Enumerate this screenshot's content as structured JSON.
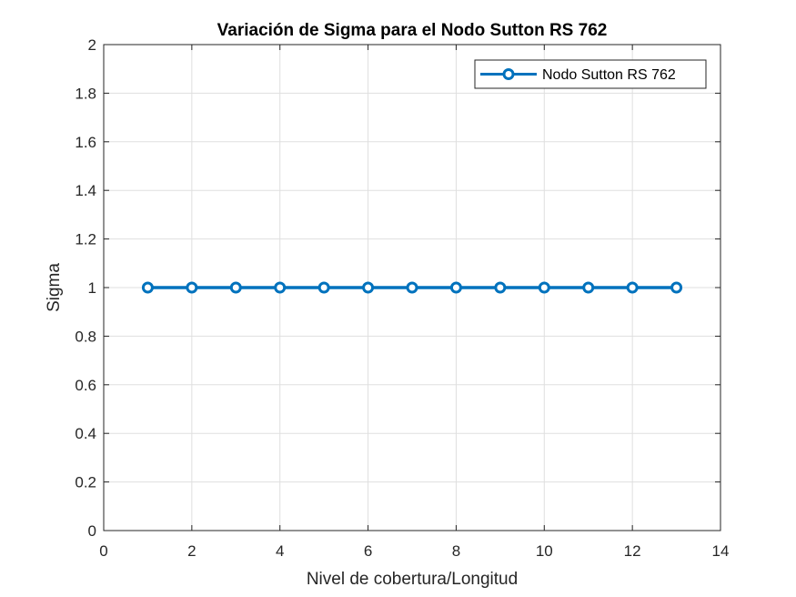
{
  "chart_data": {
    "type": "line",
    "title": "Variación de Sigma para el Nodo Sutton RS 762",
    "xlabel": "Nivel de cobertura/Longitud",
    "ylabel": "Sigma",
    "xlim": [
      0,
      14
    ],
    "ylim": [
      0,
      2
    ],
    "xticks": [
      0,
      2,
      4,
      6,
      8,
      10,
      12,
      14
    ],
    "yticks": [
      0,
      0.2,
      0.4,
      0.6,
      0.8,
      1,
      1.2,
      1.4,
      1.6,
      1.8,
      2
    ],
    "xtick_labels": [
      "0",
      "2",
      "4",
      "6",
      "8",
      "10",
      "12",
      "14"
    ],
    "ytick_labels": [
      "0",
      "0.2",
      "0.4",
      "0.6",
      "0.8",
      "1",
      "1.2",
      "1.4",
      "1.6",
      "1.8",
      "2"
    ],
    "grid": true,
    "legend_position": "top-right",
    "series": [
      {
        "name": "Nodo Sutton RS 762",
        "color": "#0072BD",
        "marker": "circle",
        "x": [
          1,
          2,
          3,
          4,
          5,
          6,
          7,
          8,
          9,
          10,
          11,
          12,
          13
        ],
        "values": [
          1,
          1,
          1,
          1,
          1,
          1,
          1,
          1,
          1,
          1,
          1,
          1,
          1
        ]
      }
    ]
  }
}
